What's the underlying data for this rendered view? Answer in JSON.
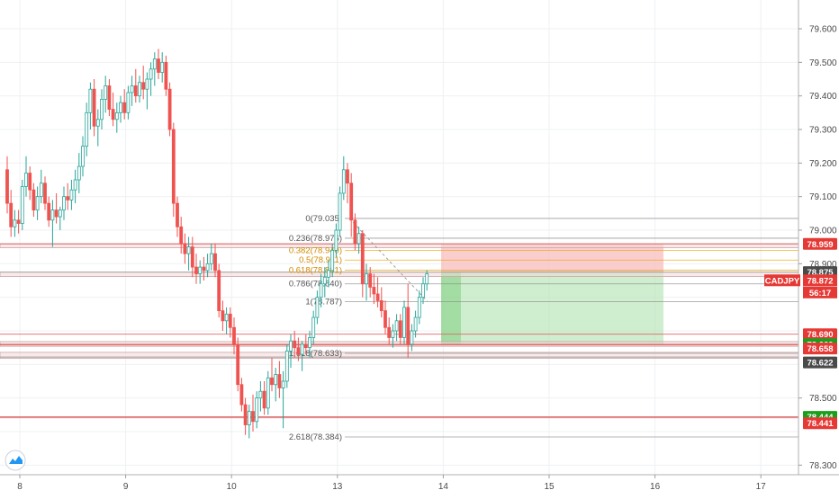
{
  "chart_data": {
    "type": "candlestick",
    "symbol": "CADJPY",
    "countdown": "56:17",
    "colors": {
      "up": "#26a69a",
      "down": "#ef5350",
      "grid": "#eef0f3",
      "tag_red": "#e53935",
      "tag_green": "#1b9e1b",
      "tag_dark": "#4a4a4a",
      "fib_gray": "#8c8c8c",
      "fib_gold": "#f0a500"
    },
    "y_axis": {
      "min": 78.26,
      "max": 79.66,
      "ticks": [
        "79.600",
        "79.500",
        "79.400",
        "79.300",
        "79.200",
        "79.100",
        "79.000",
        "78.900",
        "78.500",
        "78.300"
      ]
    },
    "x_axis": {
      "labels": [
        "8",
        "9",
        "10",
        "13",
        "14",
        "15",
        "16",
        "17"
      ],
      "label_index": [
        0,
        28,
        56,
        84,
        112,
        140,
        168,
        196
      ]
    },
    "candles": [
      [
        79.18,
        79.22,
        79.05,
        79.08
      ],
      [
        79.08,
        79.12,
        78.98,
        79.01
      ],
      [
        79.01,
        79.06,
        78.98,
        79.03
      ],
      [
        79.03,
        79.06,
        78.99,
        79.02
      ],
      [
        79.02,
        79.15,
        79.0,
        79.13
      ],
      [
        79.13,
        79.22,
        79.1,
        79.17
      ],
      [
        79.17,
        79.19,
        79.09,
        79.12
      ],
      [
        79.12,
        79.14,
        79.04,
        79.06
      ],
      [
        79.06,
        79.13,
        79.03,
        79.1
      ],
      [
        79.1,
        79.18,
        79.08,
        79.14
      ],
      [
        79.14,
        79.16,
        79.06,
        79.08
      ],
      [
        79.08,
        79.1,
        79.01,
        79.03
      ],
      [
        79.03,
        79.09,
        78.95,
        79.06
      ],
      [
        79.06,
        79.11,
        79.02,
        79.04
      ],
      [
        79.04,
        79.07,
        79.0,
        79.06
      ],
      [
        79.06,
        79.13,
        79.03,
        79.1
      ],
      [
        79.1,
        79.14,
        79.06,
        79.09
      ],
      [
        79.09,
        79.15,
        79.06,
        79.12
      ],
      [
        79.12,
        79.18,
        79.08,
        79.15
      ],
      [
        79.15,
        79.23,
        79.11,
        79.19
      ],
      [
        79.19,
        79.28,
        79.16,
        79.25
      ],
      [
        79.25,
        79.38,
        79.22,
        79.35
      ],
      [
        79.35,
        79.44,
        79.3,
        79.42
      ],
      [
        79.42,
        79.45,
        79.28,
        79.31
      ],
      [
        79.31,
        79.36,
        79.25,
        79.33
      ],
      [
        79.33,
        79.42,
        79.3,
        79.39
      ],
      [
        79.39,
        79.46,
        79.35,
        79.43
      ],
      [
        79.43,
        79.45,
        79.34,
        79.36
      ],
      [
        79.36,
        79.41,
        79.31,
        79.33
      ],
      [
        79.33,
        79.38,
        79.29,
        79.35
      ],
      [
        79.35,
        79.4,
        79.32,
        79.38
      ],
      [
        79.38,
        79.42,
        79.33,
        79.35
      ],
      [
        79.35,
        79.43,
        79.33,
        79.41
      ],
      [
        79.41,
        79.46,
        79.37,
        79.43
      ],
      [
        79.43,
        79.48,
        79.38,
        79.4
      ],
      [
        79.4,
        79.46,
        79.38,
        79.44
      ],
      [
        79.44,
        79.49,
        79.39,
        79.42
      ],
      [
        79.42,
        79.47,
        79.36,
        79.45
      ],
      [
        79.45,
        79.5,
        79.4,
        79.48
      ],
      [
        79.48,
        79.53,
        79.43,
        79.51
      ],
      [
        79.51,
        79.54,
        79.45,
        79.47
      ],
      [
        79.47,
        79.53,
        79.44,
        79.5
      ],
      [
        79.5,
        79.52,
        79.4,
        79.42
      ],
      [
        79.42,
        79.44,
        79.28,
        79.3
      ],
      [
        79.3,
        79.32,
        79.04,
        79.08
      ],
      [
        79.08,
        79.1,
        78.98,
        79.01
      ],
      [
        79.01,
        79.04,
        78.93,
        78.96
      ],
      [
        78.96,
        78.99,
        78.9,
        78.93
      ],
      [
        78.93,
        78.98,
        78.88,
        78.95
      ],
      [
        78.95,
        78.98,
        78.86,
        78.89
      ],
      [
        78.89,
        78.93,
        78.84,
        78.87
      ],
      [
        78.87,
        78.91,
        78.84,
        78.89
      ],
      [
        78.89,
        78.92,
        78.85,
        78.88
      ],
      [
        78.88,
        78.93,
        78.86,
        78.9
      ],
      [
        78.9,
        78.96,
        78.88,
        78.93
      ],
      [
        78.93,
        78.96,
        78.86,
        78.88
      ],
      [
        78.88,
        78.9,
        78.74,
        78.76
      ],
      [
        78.76,
        78.79,
        78.7,
        78.73
      ],
      [
        78.73,
        78.77,
        78.69,
        78.75
      ],
      [
        78.75,
        78.77,
        78.68,
        78.71
      ],
      [
        78.71,
        78.74,
        78.63,
        78.66
      ],
      [
        78.66,
        78.68,
        78.52,
        78.54
      ],
      [
        78.54,
        78.56,
        78.46,
        78.48
      ],
      [
        78.48,
        78.5,
        78.39,
        78.42
      ],
      [
        78.42,
        78.48,
        78.38,
        78.46
      ],
      [
        78.46,
        78.51,
        78.4,
        78.43
      ],
      [
        78.43,
        78.52,
        78.41,
        78.5
      ],
      [
        78.5,
        78.55,
        78.46,
        78.52
      ],
      [
        78.52,
        78.55,
        78.45,
        78.47
      ],
      [
        78.47,
        78.58,
        78.45,
        78.56
      ],
      [
        78.56,
        78.62,
        78.52,
        78.54
      ],
      [
        78.54,
        78.59,
        78.49,
        78.57
      ],
      [
        78.57,
        78.61,
        78.5,
        78.53
      ],
      [
        78.53,
        78.58,
        78.41,
        78.55
      ],
      [
        78.55,
        78.66,
        78.53,
        78.64
      ],
      [
        78.64,
        78.69,
        78.59,
        78.67
      ],
      [
        78.67,
        78.7,
        78.62,
        78.65
      ],
      [
        78.65,
        78.68,
        78.61,
        78.63
      ],
      [
        78.63,
        78.67,
        78.58,
        78.66
      ],
      [
        78.66,
        78.69,
        78.63,
        78.65
      ],
      [
        78.65,
        78.7,
        78.62,
        78.68
      ],
      [
        78.68,
        78.76,
        78.66,
        78.74
      ],
      [
        78.74,
        78.82,
        78.72,
        78.8
      ],
      [
        78.8,
        78.87,
        78.77,
        78.84
      ],
      [
        78.84,
        78.89,
        78.8,
        78.86
      ],
      [
        78.86,
        78.91,
        78.83,
        78.88
      ],
      [
        78.88,
        78.96,
        78.86,
        78.94
      ],
      [
        78.94,
        79.02,
        78.92,
        79.0
      ],
      [
        79.0,
        79.13,
        78.98,
        79.11
      ],
      [
        79.11,
        79.22,
        79.09,
        79.18
      ],
      [
        79.18,
        79.2,
        79.08,
        79.14
      ],
      [
        79.14,
        79.17,
        78.98,
        79.03
      ],
      [
        79.03,
        79.05,
        78.94,
        78.96
      ],
      [
        78.96,
        79.01,
        78.93,
        78.99
      ],
      [
        78.99,
        79.0,
        78.8,
        78.84
      ],
      [
        78.84,
        78.9,
        78.79,
        78.87
      ],
      [
        78.87,
        78.89,
        78.8,
        78.83
      ],
      [
        78.83,
        78.87,
        78.78,
        78.81
      ],
      [
        78.81,
        78.86,
        78.77,
        78.79
      ],
      [
        78.79,
        78.83,
        78.74,
        78.76
      ],
      [
        78.76,
        78.79,
        78.69,
        78.71
      ],
      [
        78.71,
        78.74,
        78.66,
        78.68
      ],
      [
        78.68,
        78.72,
        78.65,
        78.7
      ],
      [
        78.7,
        78.75,
        78.67,
        78.73
      ],
      [
        78.73,
        78.75,
        78.66,
        78.68
      ],
      [
        78.68,
        78.79,
        78.66,
        78.77
      ],
      [
        78.77,
        78.84,
        78.62,
        78.66
      ],
      [
        78.66,
        78.72,
        78.64,
        78.7
      ],
      [
        78.7,
        78.76,
        78.68,
        78.74
      ],
      [
        78.74,
        78.82,
        78.72,
        78.8
      ],
      [
        78.8,
        78.86,
        78.78,
        78.84
      ],
      [
        78.84,
        78.88,
        78.82,
        78.87
      ]
    ],
    "current_price": "78.872",
    "horizontal_levels": [
      {
        "price": 78.959,
        "label": "78.959",
        "tag": "red"
      },
      {
        "price": 78.875,
        "label": "78.875",
        "tag": "dark"
      },
      {
        "price": 78.69,
        "label": "78.690",
        "tag": "red"
      },
      {
        "price": 78.66,
        "label": "78.660",
        "tag": "green"
      },
      {
        "price": 78.658,
        "label": "78.658",
        "tag": "red"
      },
      {
        "price": 78.622,
        "label": "78.622",
        "tag": "dark"
      },
      {
        "price": 78.444,
        "label": "78.444",
        "tag": "green"
      },
      {
        "price": 78.441,
        "label": "78.441",
        "tag": "red"
      }
    ],
    "fibonacci": [
      {
        "label": "0(79.035)",
        "price": 79.035,
        "color": "gray"
      },
      {
        "label": "0.236(78.976)",
        "price": 78.976,
        "color": "gray"
      },
      {
        "label": "0.382(78.940)",
        "price": 78.94,
        "color": "gold"
      },
      {
        "label": "0.5(78.911)",
        "price": 78.911,
        "color": "gold"
      },
      {
        "label": "0.618(78.881)",
        "price": 78.881,
        "color": "gold"
      },
      {
        "label": "0.786(78.840)",
        "price": 78.84,
        "color": "gray"
      },
      {
        "label": "1(78.787)",
        "price": 78.787,
        "color": "gray"
      },
      {
        "label": "1.618(78.633)",
        "price": 78.633,
        "color": "gray"
      },
      {
        "label": "2.618(78.384)",
        "price": 78.384,
        "color": "gray"
      }
    ],
    "position": {
      "entry": 78.875,
      "stop": 78.959,
      "target": 78.66
    }
  }
}
